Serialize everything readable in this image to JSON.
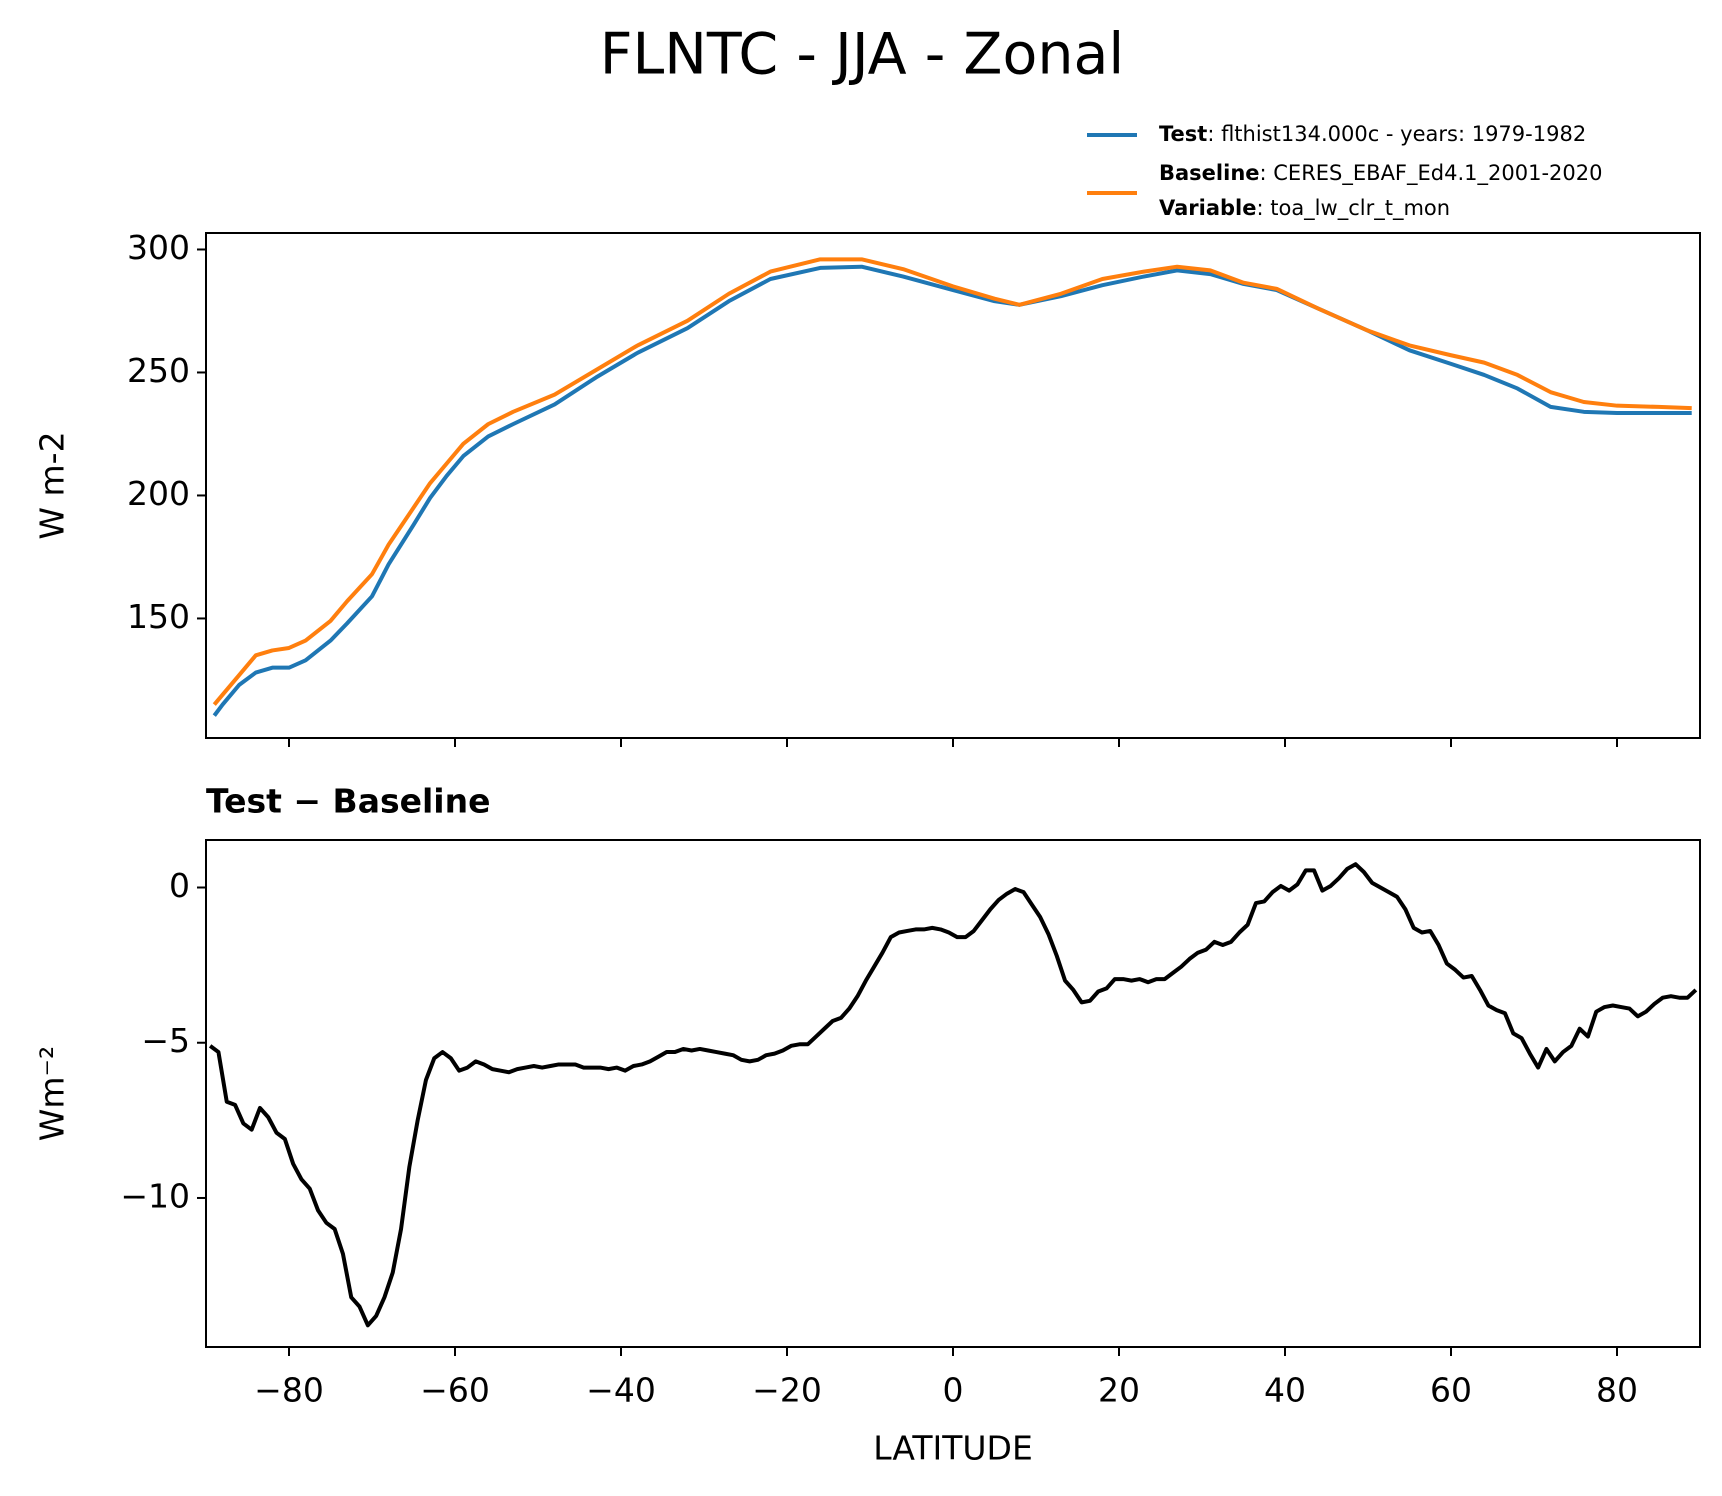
{
  "title": "FLNTC - JJA - Zonal",
  "chart_data": [
    {
      "type": "line",
      "ylabel": "W m-2",
      "x": [
        -89,
        -88,
        -86,
        -84,
        -82,
        -80,
        -78,
        -75,
        -73,
        -70,
        -68,
        -65,
        -63,
        -61,
        -59,
        -56,
        -53,
        -48,
        -43,
        -38,
        -32,
        -27,
        -22,
        -16,
        -11,
        -6,
        0,
        5,
        8,
        13,
        18,
        23,
        27,
        31,
        35,
        39,
        44,
        50,
        55,
        60,
        64,
        68,
        72,
        76,
        80,
        85,
        89
      ],
      "series": [
        {
          "name": "Test",
          "description": ": flthist134.000c - years: 1979-1982",
          "color": "#1f77b4",
          "values": [
            110.5,
            115,
            123,
            128,
            130,
            130,
            133,
            141,
            148,
            159,
            172,
            188,
            199,
            208,
            216,
            224,
            229,
            237,
            248,
            258,
            268,
            279,
            288,
            292.5,
            293,
            289,
            283.5,
            279,
            277.5,
            281,
            285.5,
            289,
            291.5,
            290,
            286,
            283.5,
            276,
            267,
            259,
            253.5,
            249,
            243.5,
            236,
            234,
            233.5,
            233.5,
            233.5
          ]
        },
        {
          "name": "Baseline",
          "description": ": CERES_EBAF_Ed4.1_2001-2020",
          "color": "#ff7f0e",
          "values": [
            115,
            119,
            127,
            135,
            137,
            138,
            141,
            149,
            157,
            168,
            180,
            195,
            205,
            213,
            221,
            229,
            234,
            241,
            251,
            261,
            271,
            282,
            291,
            296,
            296,
            292,
            285,
            280,
            277.5,
            282,
            288,
            291,
            293,
            291.5,
            286.5,
            284,
            276,
            267,
            261,
            257,
            254,
            249,
            242,
            238,
            236.5,
            236,
            235.5
          ]
        }
      ],
      "legend_extra": {
        "name": "Variable",
        "description": ": toa_lw_clr_t_mon"
      },
      "xlim": [
        -90,
        90
      ],
      "xticks": [
        -80,
        -60,
        -40,
        -20,
        0,
        20,
        40,
        60,
        80
      ],
      "xtick_labels": false,
      "ylim": [
        101.4,
        306.7
      ],
      "yticks": [
        150,
        200,
        250,
        300
      ]
    },
    {
      "type": "line",
      "title": "Test − Baseline",
      "xlabel": "LATITUDE",
      "ylabel": "Wm⁻²",
      "x": [
        -89.5,
        -88.5,
        -87.5,
        -86.5,
        -85.5,
        -84.5,
        -83.5,
        -82.5,
        -81.5,
        -80.5,
        -79.5,
        -78.5,
        -77.5,
        -76.5,
        -75.5,
        -74.5,
        -73.5,
        -72.5,
        -71.5,
        -70.5,
        -69.5,
        -68.5,
        -67.5,
        -66.5,
        -65.5,
        -64.5,
        -63.5,
        -62.5,
        -61.5,
        -60.5,
        -59.5,
        -58.5,
        -57.5,
        -56.5,
        -55.5,
        -54.5,
        -53.5,
        -52.5,
        -51.5,
        -50.5,
        -49.5,
        -48.5,
        -47.5,
        -46.5,
        -45.5,
        -44.5,
        -43.5,
        -42.5,
        -41.5,
        -40.5,
        -39.5,
        -38.5,
        -37.5,
        -36.5,
        -35.5,
        -34.5,
        -33.5,
        -32.5,
        -31.5,
        -30.5,
        -29.5,
        -28.5,
        -27.5,
        -26.5,
        -25.5,
        -24.5,
        -23.5,
        -22.5,
        -21.5,
        -20.5,
        -19.5,
        -18.5,
        -17.5,
        -16.5,
        -15.5,
        -14.5,
        -13.5,
        -12.5,
        -11.5,
        -10.5,
        -9.5,
        -8.5,
        -7.5,
        -6.5,
        -5.5,
        -4.5,
        -3.5,
        -2.5,
        -1.5,
        -0.5,
        0.5,
        1.5,
        2.5,
        3.5,
        4.5,
        5.5,
        6.5,
        7.5,
        8.5,
        9.5,
        10.5,
        11.5,
        12.5,
        13.5,
        14.5,
        15.5,
        16.5,
        17.5,
        18.5,
        19.5,
        20.5,
        21.5,
        22.5,
        23.5,
        24.5,
        25.5,
        26.5,
        27.5,
        28.5,
        29.5,
        30.5,
        31.5,
        32.5,
        33.5,
        34.5,
        35.5,
        36.5,
        37.5,
        38.5,
        39.5,
        40.5,
        41.5,
        42.5,
        43.5,
        44.5,
        45.5,
        46.5,
        47.5,
        48.5,
        49.5,
        50.5,
        51.5,
        52.5,
        53.5,
        54.5,
        55.5,
        56.5,
        57.5,
        58.5,
        59.5,
        60.5,
        61.5,
        62.5,
        63.5,
        64.5,
        65.5,
        66.5,
        67.5,
        68.5,
        69.5,
        70.5,
        71.5,
        72.5,
        73.5,
        74.5,
        75.5,
        76.5,
        77.5,
        78.5,
        79.5,
        80.5,
        81.5,
        82.5,
        83.5,
        84.5,
        85.5,
        86.5,
        87.5,
        88.5,
        89.5
      ],
      "series": [
        {
          "name": "Test − Baseline",
          "color": "#000000",
          "values": [
            -5.1,
            -5.3,
            -6.9,
            -7.0,
            -7.6,
            -7.8,
            -7.1,
            -7.4,
            -7.9,
            -8.1,
            -8.9,
            -9.4,
            -9.7,
            -10.4,
            -10.8,
            -11.0,
            -11.8,
            -13.2,
            -13.5,
            -14.1,
            -13.8,
            -13.2,
            -12.4,
            -11.0,
            -9.0,
            -7.5,
            -6.2,
            -5.5,
            -5.3,
            -5.5,
            -5.9,
            -5.8,
            -5.6,
            -5.7,
            -5.85,
            -5.9,
            -5.95,
            -5.85,
            -5.8,
            -5.75,
            -5.8,
            -5.75,
            -5.7,
            -5.7,
            -5.7,
            -5.8,
            -5.8,
            -5.8,
            -5.85,
            -5.8,
            -5.9,
            -5.75,
            -5.7,
            -5.6,
            -5.45,
            -5.3,
            -5.3,
            -5.2,
            -5.25,
            -5.2,
            -5.25,
            -5.3,
            -5.35,
            -5.4,
            -5.55,
            -5.6,
            -5.55,
            -5.4,
            -5.35,
            -5.25,
            -5.1,
            -5.05,
            -5.05,
            -4.8,
            -4.55,
            -4.3,
            -4.2,
            -3.9,
            -3.5,
            -3.0,
            -2.55,
            -2.1,
            -1.6,
            -1.45,
            -1.4,
            -1.35,
            -1.35,
            -1.3,
            -1.35,
            -1.45,
            -1.6,
            -1.6,
            -1.4,
            -1.05,
            -0.7,
            -0.4,
            -0.2,
            -0.05,
            -0.15,
            -0.55,
            -0.95,
            -1.5,
            -2.2,
            -3.0,
            -3.3,
            -3.7,
            -3.65,
            -3.35,
            -3.25,
            -2.95,
            -2.95,
            -3.0,
            -2.95,
            -3.05,
            -2.95,
            -2.95,
            -2.75,
            -2.55,
            -2.3,
            -2.1,
            -2.0,
            -1.75,
            -1.85,
            -1.75,
            -1.45,
            -1.2,
            -0.5,
            -0.45,
            -0.15,
            0.05,
            -0.1,
            0.1,
            0.55,
            0.55,
            -0.1,
            0.05,
            0.3,
            0.6,
            0.75,
            0.5,
            0.15,
            0.0,
            -0.15,
            -0.3,
            -0.7,
            -1.3,
            -1.45,
            -1.4,
            -1.85,
            -2.45,
            -2.65,
            -2.9,
            -2.85,
            -3.3,
            -3.8,
            -3.95,
            -4.05,
            -4.7,
            -4.85,
            -5.35,
            -5.8,
            -5.2,
            -5.6,
            -5.3,
            -5.1,
            -4.55,
            -4.8,
            -4.0,
            -3.85,
            -3.8,
            -3.85,
            -3.9,
            -4.15,
            -4.0,
            -3.75,
            -3.55,
            -3.5,
            -3.55,
            -3.55,
            -3.3
          ]
        }
      ],
      "xlim": [
        -90,
        90
      ],
      "xticks": [
        {
          "value": -80,
          "label": "−80"
        },
        {
          "value": -60,
          "label": "−60"
        },
        {
          "value": -40,
          "label": "−40"
        },
        {
          "value": -20,
          "label": "−20"
        },
        0,
        20,
        40,
        60,
        80
      ],
      "ylim": [
        -14.8,
        1.53
      ],
      "yticks": [
        {
          "value": -10,
          "label": "−10"
        },
        {
          "value": -5,
          "label": "−5"
        },
        0
      ]
    }
  ]
}
